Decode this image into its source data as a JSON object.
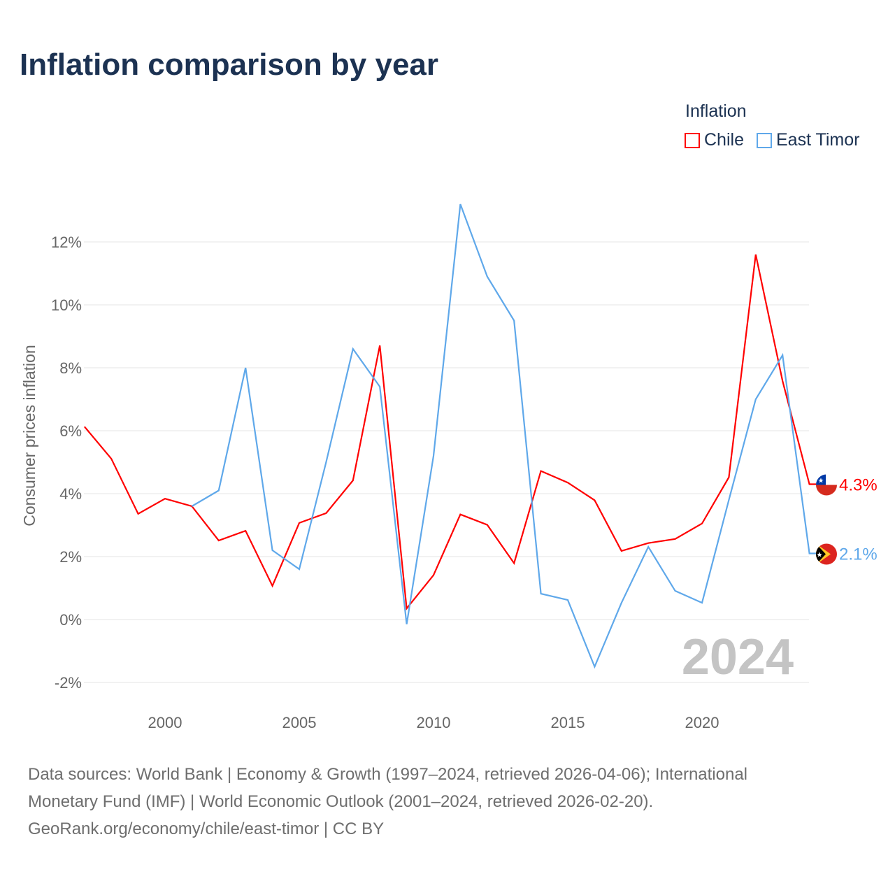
{
  "title": "Inflation comparison by year",
  "legend": {
    "title": "Inflation",
    "items": [
      {
        "label": "Chile",
        "color": "#ff0000"
      },
      {
        "label": "East Timor",
        "color": "#5fa8ea"
      }
    ]
  },
  "footer": {
    "line1": "Data sources: World Bank | Economy & Growth (1997–2024, retrieved 2026-04-06); International",
    "line2": "Monetary Fund (IMF) | World Economic Outlook (2001–2024, retrieved 2026-02-20).",
    "line3": "GeoRank.org/economy/chile/east-timor | CC BY"
  },
  "chart_data": {
    "type": "line",
    "title": "Inflation comparison by year",
    "ylabel": "Consumer prices inflation",
    "xlabel": "",
    "xlim": [
      1997,
      2024
    ],
    "ylim": [
      -2.4,
      13.5
    ],
    "xticks": [
      2000,
      2005,
      2010,
      2015,
      2020
    ],
    "yticks": [
      -2,
      0,
      2,
      4,
      6,
      8,
      10,
      12
    ],
    "ytick_labels": [
      "-2%",
      "0%",
      "2%",
      "4%",
      "6%",
      "8%",
      "10%",
      "12%"
    ],
    "year_watermark": "2024",
    "series": [
      {
        "name": "Chile",
        "color": "#ff0000",
        "end_label": "4.3%",
        "x": [
          1997,
          1998,
          1999,
          2000,
          2001,
          2002,
          2003,
          2004,
          2005,
          2006,
          2007,
          2008,
          2009,
          2010,
          2011,
          2012,
          2013,
          2014,
          2015,
          2016,
          2017,
          2018,
          2019,
          2020,
          2021,
          2022,
          2023,
          2024
        ],
        "values": [
          6.13,
          5.11,
          3.36,
          3.84,
          3.6,
          2.51,
          2.82,
          1.07,
          3.07,
          3.38,
          4.42,
          8.71,
          0.35,
          1.41,
          3.34,
          3.01,
          1.79,
          4.72,
          4.35,
          3.79,
          2.18,
          2.43,
          2.56,
          3.05,
          4.52,
          11.6,
          7.58,
          4.3
        ]
      },
      {
        "name": "East Timor",
        "color": "#5fa8ea",
        "end_label": "2.1%",
        "x": [
          2001,
          2002,
          2003,
          2004,
          2005,
          2006,
          2007,
          2008,
          2009,
          2010,
          2011,
          2012,
          2013,
          2014,
          2015,
          2016,
          2017,
          2018,
          2019,
          2020,
          2021,
          2022,
          2023,
          2024
        ],
        "values": [
          3.6,
          4.1,
          8.0,
          2.2,
          1.6,
          5.0,
          8.6,
          7.4,
          -0.15,
          5.2,
          13.2,
          10.9,
          9.5,
          0.82,
          0.62,
          -1.5,
          0.53,
          2.31,
          0.91,
          0.53,
          3.8,
          7.0,
          8.4,
          2.1
        ]
      }
    ]
  }
}
